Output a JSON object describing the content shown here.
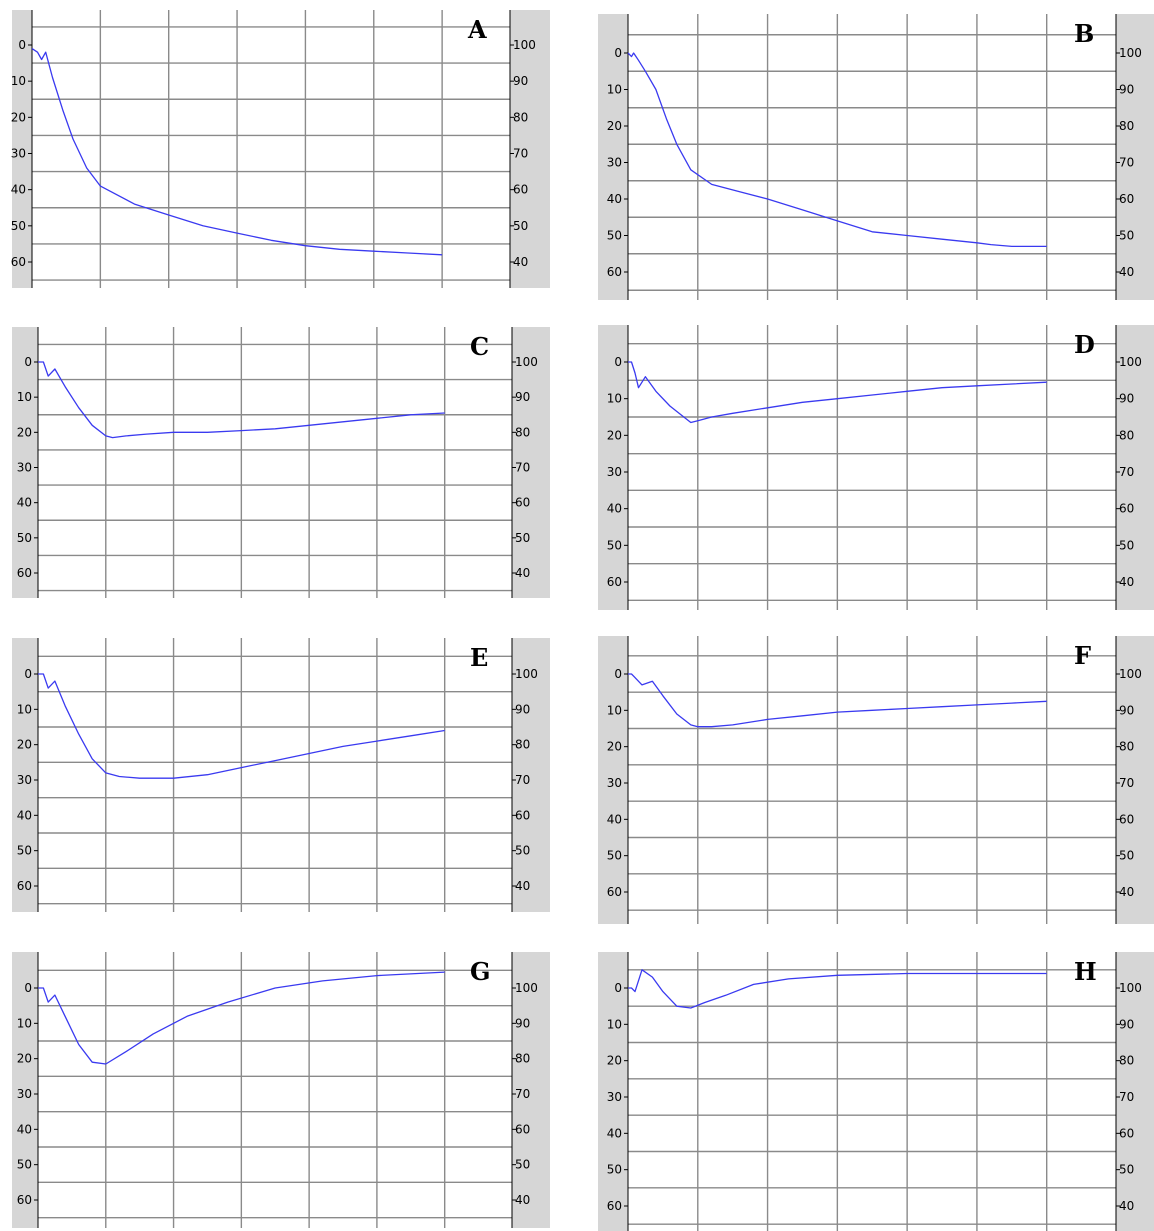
{
  "chart_data": [
    {
      "type": "line",
      "label": "A",
      "left_axis": {
        "ticks": [
          0,
          10,
          20,
          30,
          40,
          50,
          60
        ]
      },
      "right_axis": {
        "ticks": [
          100,
          90,
          80,
          70,
          60,
          50,
          40
        ]
      },
      "grid": true,
      "line_color": "#3a3af0",
      "series": [
        {
          "x": [
            0,
            0.08,
            0.14,
            0.2,
            0.3,
            0.45,
            0.6,
            0.8,
            1.0,
            1.5,
            2.0,
            2.5,
            3.0,
            3.5,
            4.0,
            4.5,
            5.0,
            5.5,
            6.0
          ],
          "y": [
            1,
            2,
            4,
            2,
            9,
            18,
            26,
            34,
            39,
            44,
            47,
            50,
            52,
            54,
            55.5,
            56.5,
            57,
            57.5,
            58
          ]
        }
      ]
    },
    {
      "type": "line",
      "label": "B",
      "left_axis": {
        "ticks": [
          0,
          10,
          20,
          30,
          40,
          50,
          60
        ]
      },
      "right_axis": {
        "ticks": [
          100,
          90,
          80,
          70,
          60,
          50,
          40
        ]
      },
      "grid": true,
      "line_color": "#3a3af0",
      "series": [
        {
          "x": [
            0,
            0.05,
            0.08,
            0.15,
            0.25,
            0.4,
            0.55,
            0.7,
            0.9,
            1.2,
            1.6,
            2.0,
            2.5,
            3.0,
            3.5,
            4.0,
            4.5,
            5.0,
            5.2,
            5.5,
            6.0
          ],
          "y": [
            0,
            1,
            0,
            2,
            5,
            10,
            18,
            25,
            32,
            36,
            38,
            40,
            43,
            46,
            49,
            50,
            51,
            52,
            52.5,
            53,
            53
          ]
        }
      ]
    },
    {
      "type": "line",
      "label": "C",
      "left_axis": {
        "ticks": [
          0,
          10,
          20,
          30,
          40,
          50,
          60
        ]
      },
      "right_axis": {
        "ticks": [
          100,
          90,
          80,
          70,
          60,
          50,
          40
        ]
      },
      "grid": true,
      "line_color": "#3a3af0",
      "series": [
        {
          "x": [
            0,
            0.08,
            0.15,
            0.25,
            0.4,
            0.6,
            0.8,
            1.0,
            1.1,
            1.3,
            1.6,
            2.0,
            2.5,
            3.0,
            3.5,
            4.0,
            4.5,
            5.0,
            5.5,
            6.0
          ],
          "y": [
            0,
            0,
            4,
            2,
            7,
            13,
            18,
            21,
            21.5,
            21,
            20.5,
            20,
            20,
            19.5,
            19,
            18,
            17,
            16,
            15,
            14.5
          ]
        }
      ]
    },
    {
      "type": "line",
      "label": "D",
      "left_axis": {
        "ticks": [
          0,
          10,
          20,
          30,
          40,
          50,
          60
        ]
      },
      "right_axis": {
        "ticks": [
          100,
          90,
          80,
          70,
          60,
          50,
          40
        ]
      },
      "grid": true,
      "line_color": "#3a3af0",
      "series": [
        {
          "x": [
            0,
            0.05,
            0.1,
            0.15,
            0.25,
            0.4,
            0.6,
            0.8,
            0.9,
            1.0,
            1.2,
            1.5,
            2.0,
            2.5,
            3.0,
            3.5,
            4.0,
            4.5,
            5.0,
            5.5,
            6.0
          ],
          "y": [
            0,
            0,
            3,
            7,
            4,
            8,
            12,
            15,
            16.5,
            16,
            15,
            14,
            12.5,
            11,
            10,
            9,
            8,
            7,
            6.5,
            6,
            5.5
          ]
        }
      ]
    },
    {
      "type": "line",
      "label": "E",
      "left_axis": {
        "ticks": [
          0,
          10,
          20,
          30,
          40,
          50,
          60
        ]
      },
      "right_axis": {
        "ticks": [
          100,
          90,
          80,
          70,
          60,
          50,
          40
        ]
      },
      "grid": true,
      "line_color": "#3a3af0",
      "series": [
        {
          "x": [
            0,
            0.08,
            0.15,
            0.25,
            0.4,
            0.6,
            0.8,
            1.0,
            1.2,
            1.5,
            2.0,
            2.5,
            3.0,
            3.5,
            4.0,
            4.5,
            5.0,
            5.5,
            6.0
          ],
          "y": [
            0,
            0,
            4,
            2,
            9,
            17,
            24,
            28,
            29,
            29.5,
            29.5,
            28.5,
            26.5,
            24.5,
            22.5,
            20.5,
            19,
            17.5,
            16
          ]
        }
      ]
    },
    {
      "type": "line",
      "label": "F",
      "left_axis": {
        "ticks": [
          0,
          10,
          20,
          30,
          40,
          50,
          60
        ]
      },
      "right_axis": {
        "ticks": [
          100,
          90,
          80,
          70,
          60,
          50,
          40
        ]
      },
      "grid": true,
      "line_color": "#3a3af0",
      "series": [
        {
          "x": [
            0,
            0.05,
            0.1,
            0.2,
            0.35,
            0.5,
            0.7,
            0.9,
            1.0,
            1.2,
            1.5,
            2.0,
            2.5,
            3.0,
            3.5,
            4.0,
            4.5,
            5.0,
            5.5,
            6.0
          ],
          "y": [
            0,
            0,
            1,
            3,
            2,
            6,
            11,
            14,
            14.5,
            14.5,
            14,
            12.5,
            11.5,
            10.5,
            10,
            9.5,
            9,
            8.5,
            8,
            7.5
          ]
        }
      ]
    },
    {
      "type": "line",
      "label": "G",
      "left_axis": {
        "ticks": [
          0,
          10,
          20,
          30,
          40,
          50,
          60
        ]
      },
      "right_axis": {
        "ticks": [
          100,
          90,
          80,
          70,
          60,
          50,
          40
        ]
      },
      "grid": true,
      "line_color": "#3a3af0",
      "series": [
        {
          "x": [
            0,
            0.08,
            0.15,
            0.25,
            0.4,
            0.6,
            0.8,
            1.0,
            1.3,
            1.7,
            2.2,
            2.8,
            3.5,
            4.2,
            5.0,
            6.0
          ],
          "y": [
            0,
            0,
            4,
            2,
            8,
            16,
            21,
            21.5,
            18,
            13,
            8,
            4,
            0,
            -2,
            -3.5,
            -4.5
          ]
        }
      ]
    },
    {
      "type": "line",
      "label": "H",
      "left_axis": {
        "ticks": [
          0,
          10,
          20,
          30,
          40,
          50,
          60
        ]
      },
      "right_axis": {
        "ticks": [
          100,
          90,
          80,
          70,
          60,
          50,
          40
        ]
      },
      "grid": true,
      "line_color": "#3a3af0",
      "series": [
        {
          "x": [
            0,
            0.05,
            0.1,
            0.2,
            0.35,
            0.5,
            0.7,
            0.9,
            1.1,
            1.4,
            1.8,
            2.3,
            3.0,
            4.0,
            5.0,
            6.0
          ],
          "y": [
            0,
            0,
            1,
            -5,
            -3,
            1,
            5,
            5.5,
            4,
            2,
            -1,
            -2.5,
            -3.5,
            -4,
            -4,
            -4
          ]
        }
      ]
    }
  ]
}
